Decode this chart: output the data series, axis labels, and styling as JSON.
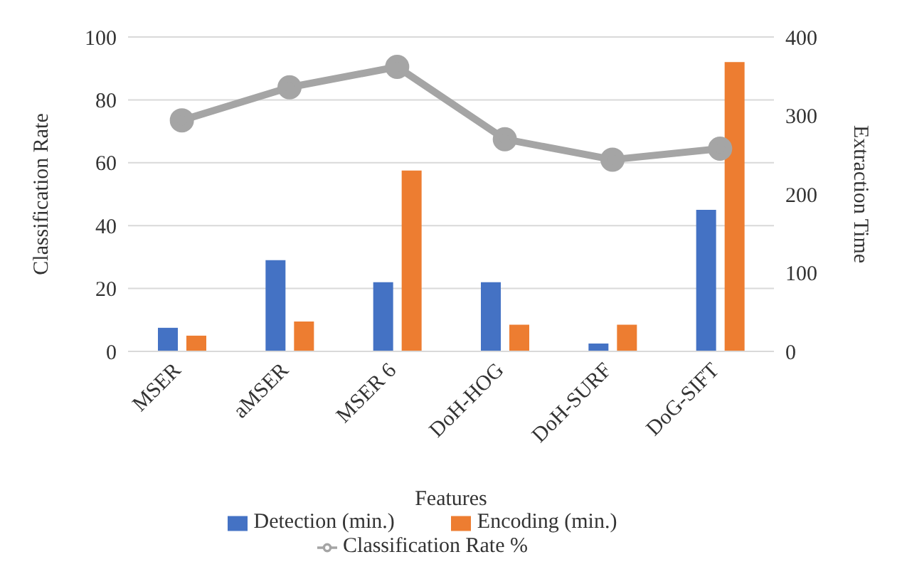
{
  "chart_data": {
    "type": "bar",
    "categories": [
      "MSER",
      "aMSER",
      "MSER 6",
      "DoH-HOG",
      "DoH-SURF",
      "DoG-SIFT"
    ],
    "xlabel": "Features",
    "ylabel": "Classification Rate",
    "y2label": "Extraction Time",
    "series": [
      {
        "name": "Detection (min.)",
        "color": "#4472c4",
        "axis": "y2",
        "values": [
          30,
          116,
          88,
          88,
          10,
          180
        ]
      },
      {
        "name": "Encoding (min.)",
        "color": "#ed7d31",
        "axis": "y2",
        "values": [
          20,
          38,
          230,
          34,
          34,
          368
        ]
      },
      {
        "name": "Classification Rate %",
        "type": "line",
        "color": "#a5a5a5",
        "values": [
          73.5,
          84,
          90.5,
          67.5,
          61,
          64.5
        ]
      }
    ],
    "ylim": [
      0,
      100
    ],
    "yticks": [
      0,
      20,
      40,
      60,
      80,
      100
    ],
    "y2lim": [
      0,
      400
    ],
    "y2ticks": [
      0,
      100,
      200,
      300,
      400
    ],
    "grid": "y",
    "legend": "bottom",
    "marker": "circle"
  }
}
